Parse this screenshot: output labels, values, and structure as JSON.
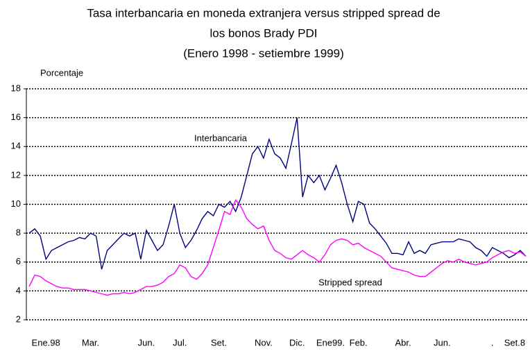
{
  "chart_data": {
    "type": "line",
    "title": [
      "Tasa interbancaria en moneda extranjera versus stripped spread de",
      "los bonos Brady PDI",
      "(Enero 1998 - setiembre 1999)"
    ],
    "y_label": "Porcentaje",
    "categories": [
      null,
      null,
      null,
      "Ene.98",
      null,
      null,
      null,
      null,
      null,
      null,
      null,
      "Mar.",
      null,
      null,
      null,
      null,
      null,
      null,
      null,
      null,
      null,
      "Jun.",
      null,
      null,
      null,
      null,
      null,
      "Jul.",
      null,
      null,
      null,
      null,
      null,
      null,
      "Set.",
      null,
      null,
      null,
      null,
      null,
      null,
      null,
      "Nov.",
      null,
      null,
      null,
      null,
      null,
      "Dic.",
      null,
      null,
      null,
      null,
      null,
      "Ene99.",
      null,
      null,
      null,
      null,
      "Feb.",
      null,
      null,
      null,
      null,
      null,
      null,
      null,
      "Abr.",
      null,
      null,
      null,
      null,
      null,
      null,
      "Jun.",
      null,
      null,
      null,
      null,
      null,
      null,
      null,
      null,
      ".",
      null,
      null,
      null,
      "Set.8",
      null,
      null
    ],
    "series": [
      {
        "name": "Interbancaria",
        "color": "#000080",
        "values": [
          8.0,
          8.3,
          7.8,
          6.2,
          6.8,
          7.0,
          7.2,
          7.4,
          7.5,
          7.7,
          7.6,
          8.0,
          7.8,
          5.5,
          6.8,
          7.2,
          7.6,
          8.0,
          7.8,
          8.0,
          6.2,
          8.2,
          7.5,
          6.8,
          7.2,
          8.5,
          10.0,
          8.0,
          7.0,
          7.5,
          8.2,
          9.0,
          9.5,
          9.2,
          10.0,
          9.8,
          10.2,
          9.5,
          10.5,
          12.0,
          13.5,
          14.0,
          13.2,
          14.5,
          13.5,
          13.2,
          12.5,
          14.2,
          16.0,
          10.5,
          12.0,
          11.5,
          12.0,
          11.0,
          11.8,
          12.7,
          11.5,
          10.0,
          8.8,
          10.2,
          10.0,
          8.7,
          8.3,
          7.8,
          7.3,
          6.6,
          6.6,
          6.5,
          7.4,
          6.6,
          6.8,
          6.6,
          7.2,
          7.3,
          7.4,
          7.4,
          7.4,
          7.6,
          7.5,
          7.4,
          7.0,
          6.8,
          6.4,
          7.0,
          6.8,
          6.6,
          6.3,
          6.5,
          6.8,
          6.4
        ]
      },
      {
        "name": "Stripped spread",
        "color": "#ff00ff",
        "values": [
          4.3,
          5.1,
          5.0,
          4.7,
          4.5,
          4.3,
          4.2,
          4.2,
          4.1,
          4.1,
          4.1,
          4.0,
          3.9,
          3.8,
          3.7,
          3.8,
          3.8,
          3.9,
          3.8,
          3.9,
          4.1,
          4.3,
          4.3,
          4.4,
          4.6,
          5.0,
          5.2,
          5.8,
          5.6,
          5.0,
          4.8,
          5.2,
          5.8,
          7.0,
          8.2,
          9.5,
          9.3,
          10.3,
          9.8,
          9.0,
          8.6,
          8.3,
          8.5,
          7.5,
          6.8,
          6.6,
          6.3,
          6.2,
          6.5,
          6.8,
          6.5,
          6.3,
          6.0,
          6.5,
          7.2,
          7.5,
          7.6,
          7.5,
          7.2,
          7.3,
          7.0,
          6.8,
          6.6,
          6.4,
          6.0,
          5.6,
          5.5,
          5.4,
          5.3,
          5.1,
          5.0,
          5.0,
          5.3,
          5.6,
          5.9,
          6.1,
          6.0,
          6.2,
          6.0,
          5.9,
          5.8,
          5.9,
          6.0,
          6.3,
          6.5,
          6.7,
          6.8,
          6.6,
          6.7,
          6.4
        ]
      }
    ],
    "ylim": [
      2,
      18
    ],
    "yticks": [
      2,
      4,
      6,
      8,
      10,
      12,
      14,
      16,
      18
    ],
    "grid": true
  }
}
